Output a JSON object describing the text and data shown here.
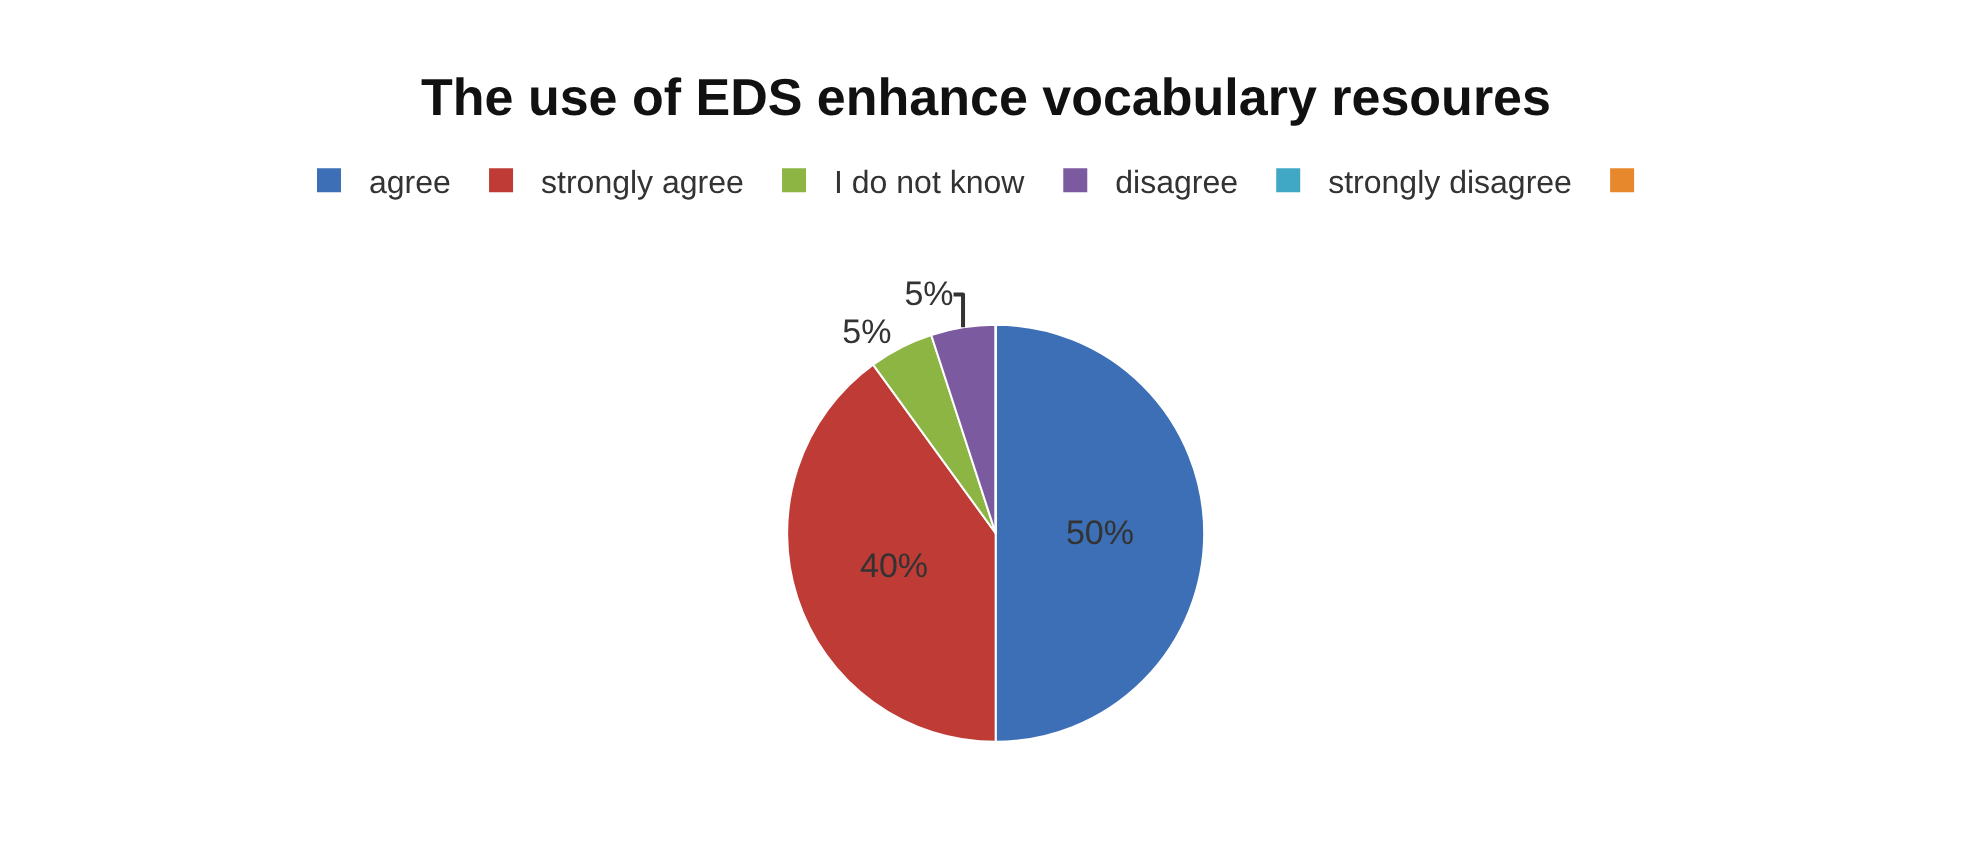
{
  "chart_data": {
    "type": "pie",
    "title": "The use of EDS enhance vocabulary resoures",
    "categories": [
      "agree",
      "strongly agree",
      "I do not know",
      "disagree",
      "strongly disagree",
      null
    ],
    "values": [
      50,
      40,
      5,
      5,
      0,
      0
    ],
    "colors": [
      "#3d6fb6",
      "#be3b36",
      "#8db543",
      "#7b5aa0",
      "#40a8c4",
      "#e8882c"
    ],
    "value_labels": [
      "50%",
      "40%",
      "5%",
      "5%",
      null,
      null
    ],
    "legend": "top"
  }
}
